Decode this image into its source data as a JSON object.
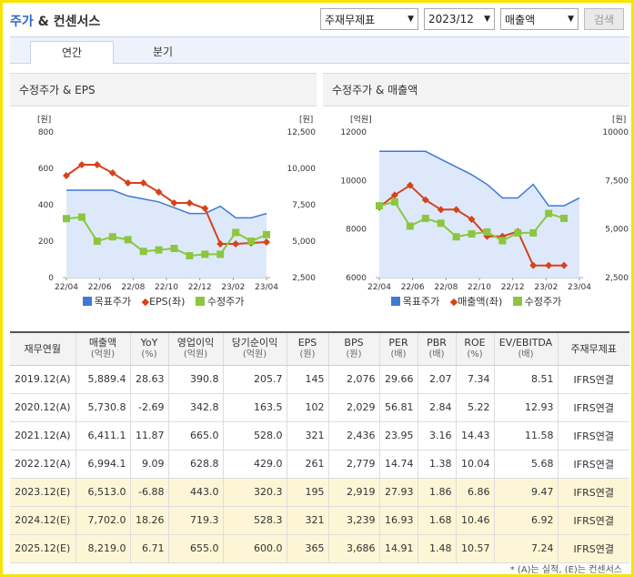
{
  "title": {
    "part1": "주가",
    "part2": " & 컨센서스"
  },
  "controls": {
    "report_select": "주재무제표",
    "period_select": "2023/12",
    "metric_select": "매출액",
    "search_label": "검색"
  },
  "tabs": [
    "연간",
    "분기"
  ],
  "panels": {
    "left_title": "수정주가 & EPS",
    "right_title": "수정주가 & 매출액"
  },
  "colors": {
    "target": "#3f79d6",
    "eps": "#d5431a",
    "price": "#8cc63f",
    "area": "#dde9fb"
  },
  "chart_data": [
    {
      "type": "line",
      "title": "수정주가 & EPS",
      "y_left_unit": "[원]",
      "y_right_unit": "[원]",
      "y_left_ticks": [
        "800",
        "600",
        "400",
        "200",
        "0"
      ],
      "y_right_ticks": [
        "12,500",
        "10,000",
        "7,500",
        "5,000",
        "2,500"
      ],
      "y_left_range": [
        0,
        800
      ],
      "y_right_range": [
        2500,
        12500
      ],
      "x_ticks": [
        "22/04",
        "22/06",
        "22/08",
        "22/10",
        "22/12",
        "23/02",
        "23/04"
      ],
      "legend": [
        "목표주가",
        "EPS(좌)",
        "수정주가"
      ],
      "series": [
        {
          "name": "목표주가",
          "axis": "right",
          "values": [
            8500,
            8500,
            8500,
            8500,
            8100,
            7900,
            7700,
            7300,
            6900,
            6900,
            7400,
            6600,
            6600,
            6900
          ]
        },
        {
          "name": "EPS(좌)",
          "axis": "left",
          "values": [
            560,
            620,
            620,
            575,
            520,
            520,
            470,
            410,
            410,
            380,
            185,
            185,
            190,
            195
          ]
        },
        {
          "name": "수정주가",
          "axis": "right",
          "values": [
            6550,
            6650,
            5000,
            5300,
            5100,
            4300,
            4400,
            4500,
            4000,
            4100,
            4100,
            5600,
            5000,
            5450
          ]
        }
      ]
    },
    {
      "type": "line",
      "title": "수정주가 & 매출액",
      "y_left_unit": "[억원]",
      "y_right_unit": "[원]",
      "y_left_ticks": [
        "12000",
        "10000",
        "8000",
        "6000"
      ],
      "y_right_ticks": [
        "10000",
        "7,500",
        "5,000",
        "2,500"
      ],
      "y_left_range": [
        6000,
        12000
      ],
      "y_right_range": [
        2500,
        10000
      ],
      "x_ticks": [
        "22/04",
        "22/06",
        "22/08",
        "22/10",
        "22/12",
        "23/02",
        "23/04"
      ],
      "legend": [
        "목표주가",
        "매출액(좌)",
        "수정주가"
      ],
      "series": [
        {
          "name": "목표주가",
          "axis": "right",
          "values": [
            9000,
            9000,
            9000,
            9000,
            8600,
            8200,
            7800,
            7300,
            6600,
            6600,
            7300,
            6200,
            6200,
            6600
          ]
        },
        {
          "name": "매출액(좌)",
          "axis": "left",
          "values": [
            8900,
            9400,
            9800,
            9200,
            8800,
            8800,
            8400,
            7700,
            7700,
            7900,
            6500,
            6500,
            6500
          ]
        },
        {
          "name": "수정주가",
          "axis": "right",
          "values": [
            6200,
            6400,
            5150,
            5550,
            5300,
            4600,
            4750,
            4850,
            4400,
            4800,
            4800,
            5800,
            5550
          ]
        }
      ]
    }
  ],
  "table": {
    "headers": [
      {
        "label": "재무연월",
        "sub": ""
      },
      {
        "label": "매출액",
        "sub": "(억원)"
      },
      {
        "label": "YoY",
        "sub": "(%)"
      },
      {
        "label": "영업이익",
        "sub": "(억원)"
      },
      {
        "label": "당기순이익",
        "sub": "(억원)"
      },
      {
        "label": "EPS",
        "sub": "(원)"
      },
      {
        "label": "BPS",
        "sub": "(원)"
      },
      {
        "label": "PER",
        "sub": "(배)"
      },
      {
        "label": "PBR",
        "sub": "(배)"
      },
      {
        "label": "ROE",
        "sub": "(%)"
      },
      {
        "label": "EV/EBITDA",
        "sub": "(배)"
      },
      {
        "label": "주재무제표",
        "sub": ""
      }
    ],
    "rows": [
      {
        "estimate": false,
        "cells": [
          "2019.12(A)",
          "5,889.4",
          "28.63",
          "390.8",
          "205.7",
          "145",
          "2,076",
          "29.66",
          "2.07",
          "7.34",
          "8.51",
          "IFRS연결"
        ]
      },
      {
        "estimate": false,
        "cells": [
          "2020.12(A)",
          "5,730.8",
          "-2.69",
          "342.8",
          "163.5",
          "102",
          "2,029",
          "56.81",
          "2.84",
          "5.22",
          "12.93",
          "IFRS연결"
        ]
      },
      {
        "estimate": false,
        "cells": [
          "2021.12(A)",
          "6,411.1",
          "11.87",
          "665.0",
          "528.0",
          "321",
          "2,436",
          "23.95",
          "3.16",
          "14.43",
          "11.58",
          "IFRS연결"
        ]
      },
      {
        "estimate": false,
        "cells": [
          "2022.12(A)",
          "6,994.1",
          "9.09",
          "628.8",
          "429.0",
          "261",
          "2,779",
          "14.74",
          "1.38",
          "10.04",
          "5.68",
          "IFRS연결"
        ]
      },
      {
        "estimate": true,
        "cells": [
          "2023.12(E)",
          "6,513.0",
          "-6.88",
          "443.0",
          "320.3",
          "195",
          "2,919",
          "27.93",
          "1.86",
          "6.86",
          "9.47",
          "IFRS연결"
        ]
      },
      {
        "estimate": true,
        "cells": [
          "2024.12(E)",
          "7,702.0",
          "18.26",
          "719.3",
          "528.3",
          "321",
          "3,239",
          "16.93",
          "1.68",
          "10.46",
          "6.92",
          "IFRS연결"
        ]
      },
      {
        "estimate": true,
        "cells": [
          "2025.12(E)",
          "8,219.0",
          "6.71",
          "655.0",
          "600.0",
          "365",
          "3,686",
          "14.91",
          "1.48",
          "10.57",
          "7.24",
          "IFRS연결"
        ]
      }
    ]
  },
  "footnote": "* (A)는 실적, (E)는 컨센서스"
}
